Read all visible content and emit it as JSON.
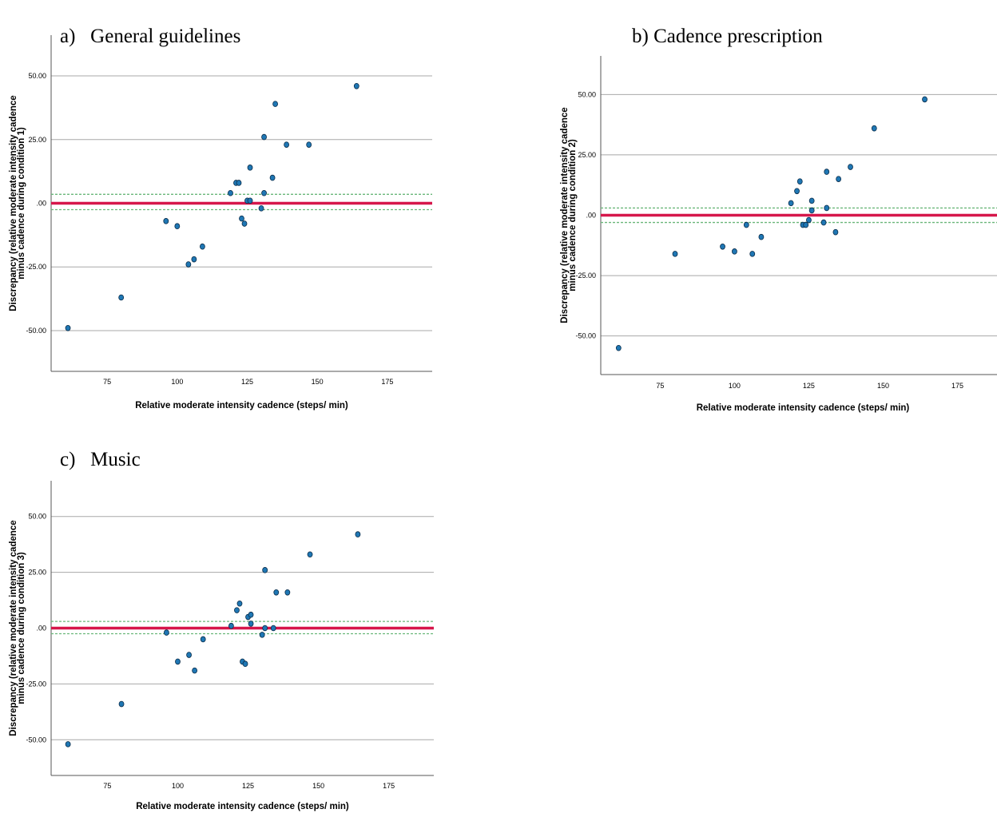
{
  "colors": {
    "point_fill": "#1f77b4",
    "point_stroke": "#0b2d4a",
    "mean_line": "#d6174b",
    "loa_line": "#6ab77a",
    "grid": "#a8a8a8"
  },
  "chart_data": [
    {
      "type": "scatter",
      "panel_label": "a)",
      "title": "General guidelines",
      "xlabel": "Relative moderate intensity cadence (steps/ min)",
      "ylabel_line1": "Discrepancy (relative moderate intensity cadence",
      "ylabel_line2": "minus cadence during condition 1)",
      "xlim": [
        55,
        191
      ],
      "ylim": [
        -66,
        66
      ],
      "xticks": [
        75,
        100,
        125,
        150,
        175
      ],
      "xtick_labels": [
        "75",
        "100",
        "125",
        "150",
        "175"
      ],
      "yticks": [
        50,
        25,
        0,
        -25,
        -50
      ],
      "ytick_labels": [
        "50.00",
        "25.00",
        ".00",
        "-25.00",
        "-50.00"
      ],
      "grid": "horizontal",
      "mean_line": 0,
      "limits_of_agreement": [
        3.5,
        -2.5
      ],
      "points": [
        {
          "x": 61,
          "y": -49
        },
        {
          "x": 80,
          "y": -37
        },
        {
          "x": 96,
          "y": -7
        },
        {
          "x": 100,
          "y": -9
        },
        {
          "x": 104,
          "y": -24
        },
        {
          "x": 106,
          "y": -22
        },
        {
          "x": 109,
          "y": -17
        },
        {
          "x": 119,
          "y": 4
        },
        {
          "x": 121,
          "y": 8
        },
        {
          "x": 122,
          "y": 8
        },
        {
          "x": 123,
          "y": -6
        },
        {
          "x": 124,
          "y": -8
        },
        {
          "x": 125,
          "y": 1
        },
        {
          "x": 126,
          "y": 1
        },
        {
          "x": 126,
          "y": 14
        },
        {
          "x": 130,
          "y": -2
        },
        {
          "x": 131,
          "y": 4
        },
        {
          "x": 131,
          "y": 26
        },
        {
          "x": 134,
          "y": 10
        },
        {
          "x": 135,
          "y": 39
        },
        {
          "x": 139,
          "y": 23
        },
        {
          "x": 147,
          "y": 23
        },
        {
          "x": 164,
          "y": 46
        }
      ]
    },
    {
      "type": "scatter",
      "panel_label": "b)",
      "title": "Cadence prescription",
      "xlabel": "Relative moderate intensity cadence (steps/ min)",
      "ylabel_line1": "Discrepancy (relative moderate intensity cadence",
      "ylabel_line2": "minus cadence during condition 2)",
      "xlim": [
        55,
        191
      ],
      "ylim": [
        -66,
        66
      ],
      "xticks": [
        75,
        100,
        125,
        150,
        175
      ],
      "xtick_labels": [
        "75",
        "100",
        "125",
        "150",
        "175"
      ],
      "yticks": [
        50,
        25,
        0,
        -25,
        -50
      ],
      "ytick_labels": [
        "50.00",
        "25.00",
        ".00",
        "-25.00",
        "-50.00"
      ],
      "grid": "horizontal",
      "mean_line": 0,
      "limits_of_agreement": [
        3,
        -3
      ],
      "points": [
        {
          "x": 61,
          "y": -55
        },
        {
          "x": 80,
          "y": -16
        },
        {
          "x": 96,
          "y": -13
        },
        {
          "x": 100,
          "y": -15
        },
        {
          "x": 104,
          "y": -4
        },
        {
          "x": 106,
          "y": -16
        },
        {
          "x": 109,
          "y": -9
        },
        {
          "x": 119,
          "y": 5
        },
        {
          "x": 121,
          "y": 10
        },
        {
          "x": 122,
          "y": 14
        },
        {
          "x": 123,
          "y": -4
        },
        {
          "x": 124,
          "y": -4
        },
        {
          "x": 125,
          "y": -2
        },
        {
          "x": 126,
          "y": 2
        },
        {
          "x": 126,
          "y": 6
        },
        {
          "x": 130,
          "y": -3
        },
        {
          "x": 131,
          "y": 3
        },
        {
          "x": 131,
          "y": 18
        },
        {
          "x": 134,
          "y": -7
        },
        {
          "x": 135,
          "y": 15
        },
        {
          "x": 139,
          "y": 20
        },
        {
          "x": 147,
          "y": 36
        },
        {
          "x": 164,
          "y": 48
        }
      ]
    },
    {
      "type": "scatter",
      "panel_label": "c)",
      "title": "Music",
      "xlabel": "Relative moderate intensity cadence (steps/ min)",
      "ylabel_line1": "Discrepancy (relative moderate intensity cadence",
      "ylabel_line2": "minus cadence during condition 3)",
      "xlim": [
        55,
        191
      ],
      "ylim": [
        -66,
        66
      ],
      "xticks": [
        75,
        100,
        125,
        150,
        175
      ],
      "xtick_labels": [
        "75",
        "100",
        "125",
        "150",
        "175"
      ],
      "yticks": [
        50,
        25,
        0,
        -25,
        -50
      ],
      "ytick_labels": [
        "50.00",
        "25.00",
        ".00",
        "-25.00",
        "-50.00"
      ],
      "grid": "horizontal",
      "mean_line": 0,
      "limits_of_agreement": [
        3,
        -2.5
      ],
      "points": [
        {
          "x": 61,
          "y": -52
        },
        {
          "x": 80,
          "y": -34
        },
        {
          "x": 96,
          "y": -2
        },
        {
          "x": 100,
          "y": -15
        },
        {
          "x": 104,
          "y": -12
        },
        {
          "x": 106,
          "y": -19
        },
        {
          "x": 109,
          "y": -5
        },
        {
          "x": 119,
          "y": 1
        },
        {
          "x": 121,
          "y": 8
        },
        {
          "x": 122,
          "y": 11
        },
        {
          "x": 123,
          "y": -15
        },
        {
          "x": 124,
          "y": -16
        },
        {
          "x": 125,
          "y": 5
        },
        {
          "x": 126,
          "y": 2
        },
        {
          "x": 126,
          "y": 6
        },
        {
          "x": 130,
          "y": -3
        },
        {
          "x": 131,
          "y": 0
        },
        {
          "x": 131,
          "y": 26
        },
        {
          "x": 134,
          "y": 0
        },
        {
          "x": 135,
          "y": 16
        },
        {
          "x": 139,
          "y": 16
        },
        {
          "x": 147,
          "y": 33
        },
        {
          "x": 164,
          "y": 42
        }
      ]
    }
  ]
}
